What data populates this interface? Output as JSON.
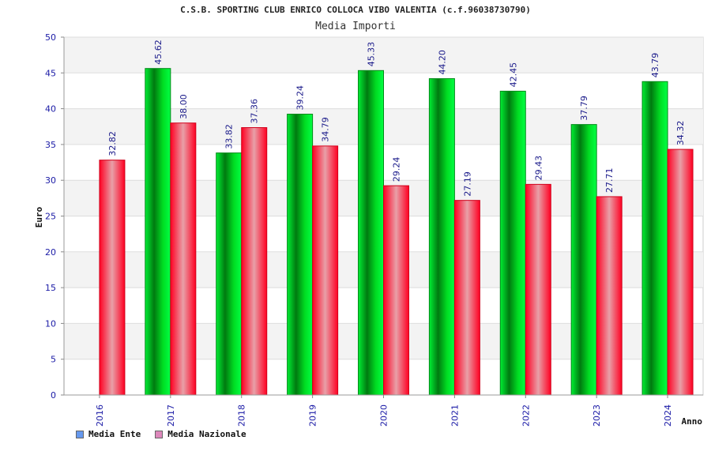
{
  "chart_data": {
    "type": "bar",
    "title": "C.S.B. SPORTING CLUB ENRICO COLLOCA VIBO VALENTIA (c.f.96038730790)",
    "subtitle": "Media Importi",
    "xlabel": "Anno",
    "ylabel": "Euro",
    "ylim": [
      0,
      50
    ],
    "yticks": [
      "0",
      "5",
      "10",
      "15",
      "20",
      "25",
      "30",
      "35",
      "40",
      "45",
      "50"
    ],
    "categories": [
      "2016",
      "2017",
      "2018",
      "2019",
      "2020",
      "2021",
      "2022",
      "2023",
      "2024"
    ],
    "series": [
      {
        "name": "Media Ente",
        "color": "#00cc22",
        "legend_color": "#6699ee",
        "values": [
          null,
          45.62,
          33.82,
          39.24,
          45.33,
          44.2,
          42.45,
          37.79,
          43.79
        ],
        "labels": [
          "",
          "45.62",
          "33.82",
          "39.24",
          "45.33",
          "44.20",
          "42.45",
          "37.79",
          "43.79"
        ]
      },
      {
        "name": "Media Nazionale",
        "color": "#ff1a33",
        "legend_color": "#dd88bb",
        "values": [
          32.82,
          38.0,
          37.36,
          34.79,
          29.24,
          27.19,
          29.43,
          27.71,
          34.32
        ],
        "labels": [
          "32.82",
          "38.00",
          "37.36",
          "34.79",
          "29.24",
          "27.19",
          "29.43",
          "27.71",
          "34.32"
        ]
      }
    ],
    "grid": true,
    "legend": "bottom-left"
  }
}
